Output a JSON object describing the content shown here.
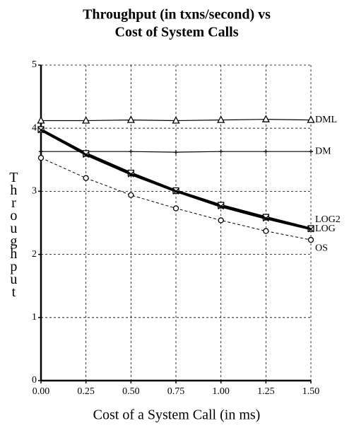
{
  "chart_data": {
    "type": "line",
    "title": [
      "Throughput (in txns/second) vs",
      "Cost of System Calls"
    ],
    "x_label": "Cost of a System Call (in ms)",
    "y_label": "Throughput",
    "x": [
      0,
      0.25,
      0.5,
      0.75,
      1.0,
      1.25,
      1.5
    ],
    "xlim": [
      0,
      1.5
    ],
    "xticks": [
      {
        "value": 0,
        "label": "0.00"
      },
      {
        "value": 0.25,
        "label": "0.25"
      },
      {
        "value": 0.5,
        "label": "0.50"
      },
      {
        "value": 0.75,
        "label": "0.75"
      },
      {
        "value": 1.0,
        "label": "1.00"
      },
      {
        "value": 1.25,
        "label": "1.25"
      },
      {
        "value": 1.5,
        "label": "1.50"
      }
    ],
    "ylim": [
      0,
      5
    ],
    "yticks": [
      0,
      1,
      2,
      3,
      4,
      5
    ],
    "grid": true,
    "series": [
      {
        "name": "DML",
        "color": "#000000",
        "marker": "triangle",
        "line_style": "solid",
        "values": [
          4.12,
          4.12,
          4.13,
          4.12,
          4.13,
          4.14,
          4.13
        ]
      },
      {
        "name": "DM",
        "color": "#000000",
        "marker": "plus",
        "line_style": "solid",
        "values": [
          3.63,
          3.63,
          3.63,
          3.62,
          3.63,
          3.63,
          3.63
        ]
      },
      {
        "name": "LOG2",
        "color": "#000000",
        "marker": "square",
        "line_style": "thick",
        "values": [
          3.98,
          3.6,
          3.29,
          3.01,
          2.78,
          2.59,
          2.41
        ]
      },
      {
        "name": "LOG",
        "color": "#000000",
        "marker": "cross",
        "line_style": "thick",
        "values": [
          3.97,
          3.58,
          3.27,
          3.0,
          2.76,
          2.57,
          2.4
        ]
      },
      {
        "name": "OS",
        "color": "#000000",
        "marker": "circle",
        "line_style": "dashed",
        "values": [
          3.53,
          3.21,
          2.94,
          2.73,
          2.54,
          2.37,
          2.23
        ]
      }
    ]
  }
}
